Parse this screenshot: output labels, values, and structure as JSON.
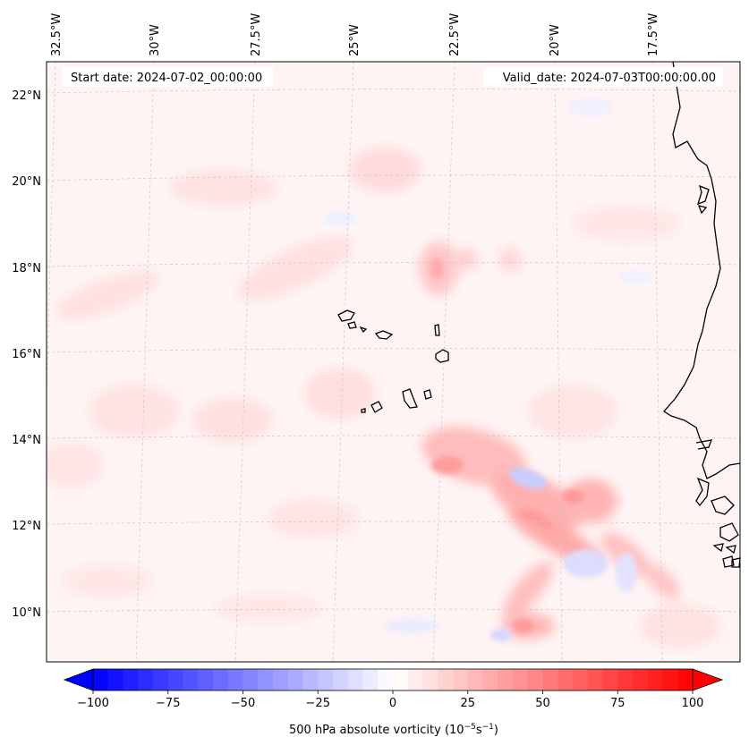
{
  "map": {
    "start_label": "Start date: 2024-07-02_00:00:00",
    "valid_label": "Valid_date: 2024-07-03T00:00:00.00",
    "lon_labels": [
      "32.5°W",
      "30°W",
      "27.5°W",
      "25°W",
      "22.5°W",
      "20°W",
      "17.5°W"
    ],
    "lat_labels": [
      "22°N",
      "20°N",
      "18°N",
      "16°N",
      "14°N",
      "12°N",
      "10°N"
    ],
    "colors": {
      "background": "#fff3f3",
      "coastline": "#000000",
      "gridline": "#c8c8c8",
      "positive_max": "#ff0000",
      "negative_max": "#0000ff"
    }
  },
  "colorbar": {
    "label_text": "500 hPa absolute vorticity (10",
    "label_exp": "−5",
    "label_mid": "s",
    "label_exp2": "−1",
    "label_end": ")",
    "ticks": [
      "−100",
      "−75",
      "−50",
      "−25",
      "0",
      "25",
      "50",
      "75",
      "100"
    ],
    "vmin": -100,
    "vmax": 100,
    "levels": 40
  }
}
